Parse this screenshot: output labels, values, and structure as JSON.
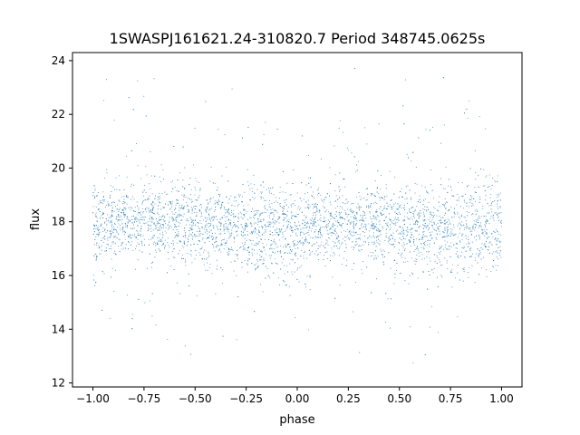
{
  "chart_data": {
    "type": "scatter",
    "title": "1SWASPJ161621.24-310820.7 Period 348745.0625s",
    "xlabel": "phase",
    "ylabel": "flux",
    "xlim": [
      -1.1,
      1.1
    ],
    "ylim": [
      11.85,
      24.3
    ],
    "xticks": [
      -1.0,
      -0.75,
      -0.5,
      -0.25,
      0.0,
      0.25,
      0.5,
      0.75,
      1.0
    ],
    "xtick_labels": [
      "−1.00",
      "−0.75",
      "−0.50",
      "−0.25",
      "0.00",
      "0.25",
      "0.50",
      "0.75",
      "1.00"
    ],
    "yticks": [
      12,
      14,
      16,
      18,
      20,
      22,
      24
    ],
    "ytick_labels": [
      "12",
      "14",
      "16",
      "18",
      "20",
      "22",
      "24"
    ],
    "grid": false,
    "marker_color": "#1f77b4",
    "phase_profile": {
      "phase": [
        -1.0,
        -0.75,
        -0.5,
        -0.25,
        0.0,
        0.25,
        0.5,
        0.75,
        1.0
      ],
      "median_flux": [
        17.3,
        18.2,
        17.6,
        17.4,
        16.9,
        18.0,
        17.4,
        17.1,
        17.6
      ],
      "flux_spread": [
        1.9,
        1.6,
        2.0,
        1.8,
        2.1,
        1.5,
        2.0,
        2.2,
        2.0
      ]
    }
  }
}
